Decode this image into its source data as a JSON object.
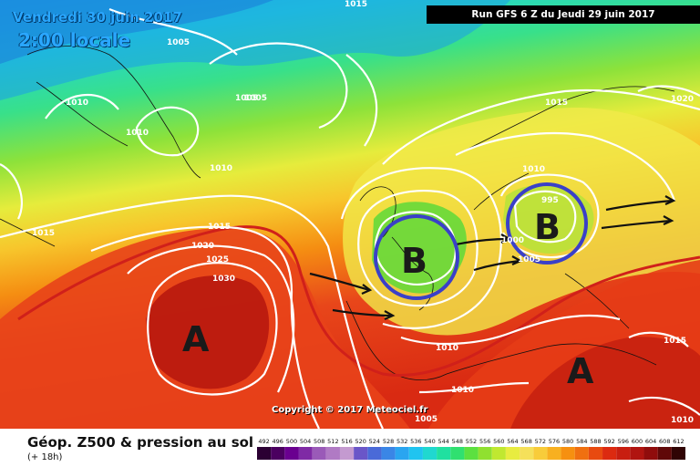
{
  "header": {
    "date": "Vendredi 30 juin 2017",
    "time": "2:00 locale",
    "run": "Run GFS 6 Z du Jeudi 29 juin 2017"
  },
  "map": {
    "isobar_labels": [
      "1015",
      "1005",
      "1010",
      "1005",
      "1005",
      "1010",
      "1015",
      "1020",
      "1025",
      "1030",
      "1015",
      "1020",
      "1010",
      "995",
      "1005",
      "1000",
      "1010",
      "1010",
      "1005",
      "1015",
      "1010",
      "1010",
      "1015"
    ],
    "systems": [
      {
        "letter": "A",
        "type": "high"
      },
      {
        "letter": "A",
        "type": "high"
      },
      {
        "letter": "B",
        "type": "low"
      },
      {
        "letter": "B",
        "type": "low"
      }
    ],
    "copyright": "Copyright © 2017 Meteociel.fr"
  },
  "legend": {
    "title": "Géop. Z500 & pression au sol",
    "subtitle": "(+ 18h)",
    "values": [
      "492",
      "496",
      "500",
      "504",
      "508",
      "512",
      "516",
      "520",
      "524",
      "528",
      "532",
      "536",
      "540",
      "544",
      "548",
      "552",
      "556",
      "560",
      "564",
      "568",
      "572",
      "576",
      "580",
      "584",
      "588",
      "592",
      "596",
      "600",
      "604",
      "608",
      "612"
    ],
    "colors": [
      "#2b0033",
      "#4b0060",
      "#6a0090",
      "#7f2aa5",
      "#9a5ab8",
      "#b07ac4",
      "#c49ad0",
      "#6a56c8",
      "#4a6ad8",
      "#3a86e6",
      "#2aa5f0",
      "#20c4f0",
      "#20d8d0",
      "#20e0a0",
      "#30e070",
      "#5ce040",
      "#90e030",
      "#c0e830",
      "#e8ec40",
      "#f5e05a",
      "#f8cc3a",
      "#f8b020",
      "#f69010",
      "#f07010",
      "#e84a10",
      "#dc2a10",
      "#c81e10",
      "#b01410",
      "#900c0c",
      "#600808",
      "#300404"
    ]
  }
}
